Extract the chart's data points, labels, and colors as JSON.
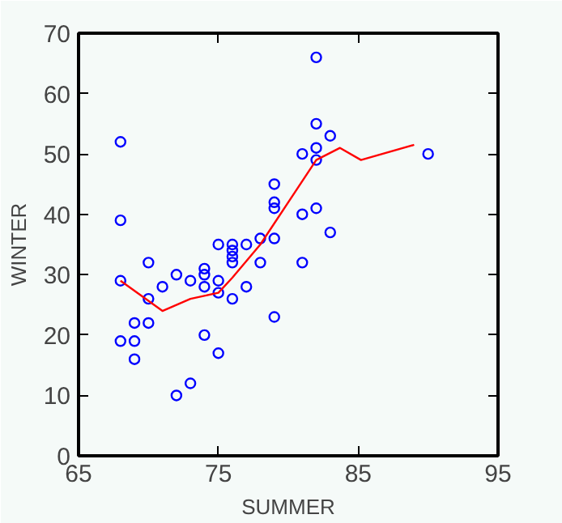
{
  "chart_data": {
    "type": "scatter",
    "xlabel": "SUMMER",
    "ylabel": "WINTER",
    "xlim": [
      65,
      95
    ],
    "ylim": [
      0,
      70
    ],
    "xticks": [
      65,
      75,
      85,
      95
    ],
    "yticks": [
      0,
      10,
      20,
      30,
      40,
      50,
      60,
      70
    ],
    "grid": false,
    "marker": "circle",
    "series": [
      {
        "color": "#0000ff",
        "x": [
          68,
          68,
          68,
          68,
          69,
          69,
          69,
          70,
          70,
          70,
          71,
          72,
          72,
          73,
          73,
          74,
          74,
          74,
          74,
          75,
          75,
          75,
          75,
          76,
          76,
          76,
          76,
          76,
          77,
          77,
          78,
          78,
          79,
          79,
          79,
          79,
          79,
          81,
          81,
          81,
          82,
          82,
          82,
          82,
          82,
          83,
          83,
          90
        ],
        "values": [
          52,
          39,
          29,
          19,
          22,
          19,
          16,
          32,
          22,
          26,
          28,
          30,
          10,
          29,
          12,
          31,
          30,
          28,
          20,
          35,
          29,
          27,
          17,
          35,
          34,
          33,
          32,
          26,
          35,
          28,
          36,
          32,
          45,
          42,
          41,
          36,
          23,
          50,
          40,
          32,
          66,
          55,
          51,
          49,
          41,
          53,
          37,
          50
        ]
      },
      {
        "type": "line",
        "color": "#ff0000",
        "marker": "none",
        "x": [
          68,
          71,
          73,
          74,
          75,
          76,
          78,
          82,
          83.7,
          85.2,
          89
        ],
        "values": [
          29,
          24,
          26,
          26.5,
          27,
          29.5,
          35,
          49,
          51,
          49,
          51.5
        ]
      }
    ]
  }
}
